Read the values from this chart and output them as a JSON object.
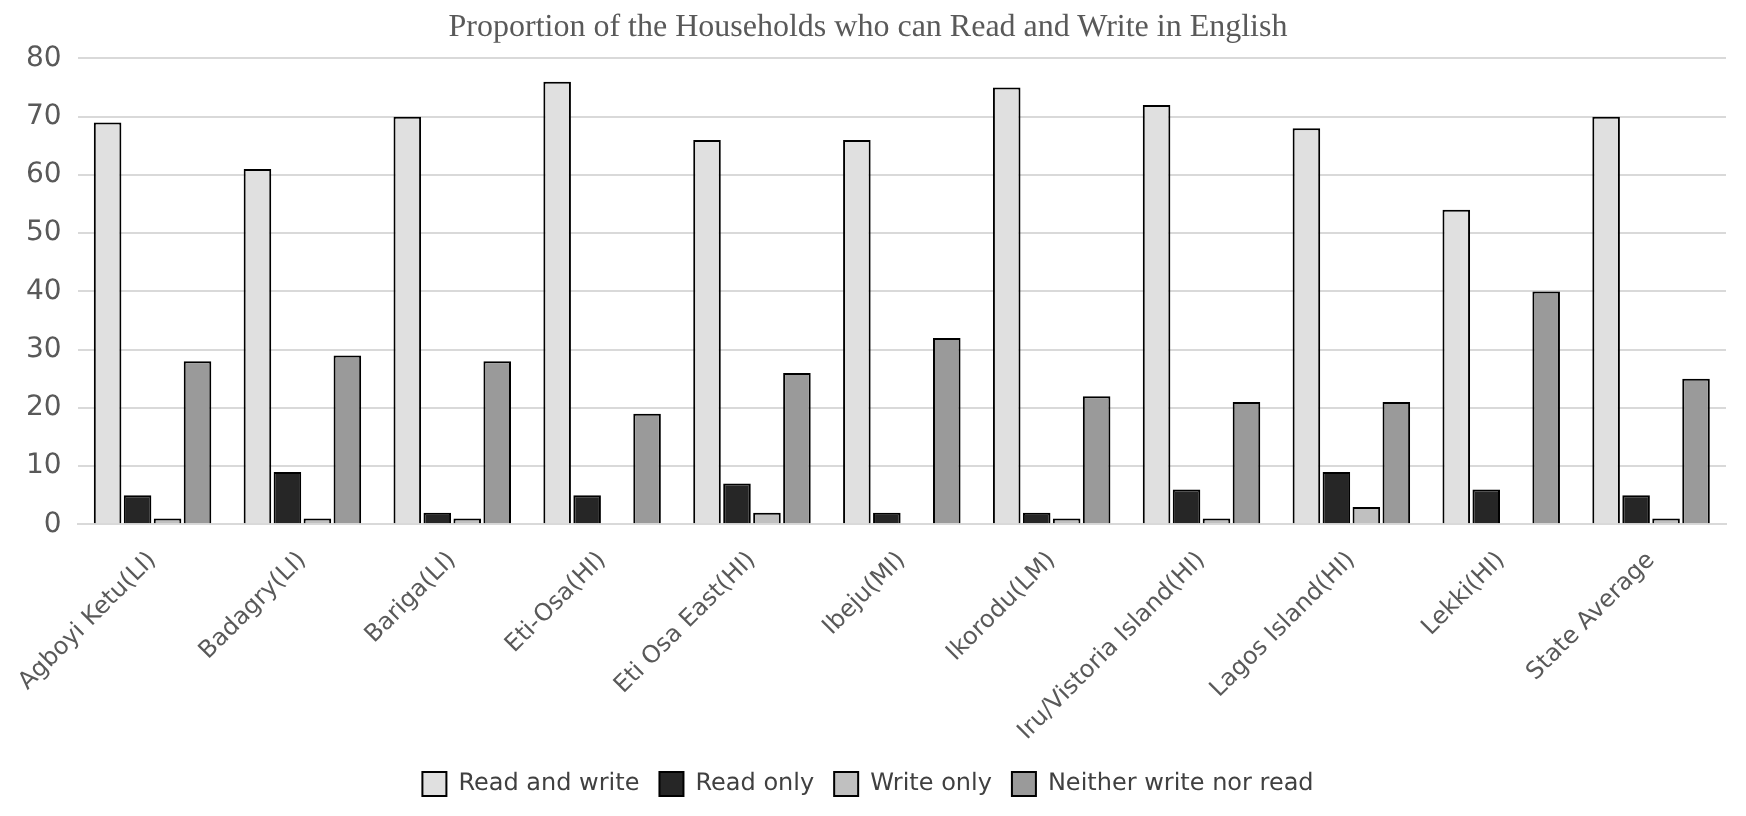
{
  "chart_data": {
    "type": "bar",
    "title": "Proportion of the Households who can Read and Write in English",
    "categories": [
      "Agboyi Ketu(LI)",
      "Badagry(LI)",
      "Bariga(LI)",
      "Eti-Osa(HI)",
      "Eti Osa East(HI)",
      "Ibeju(MI)",
      "Ikorodu(LM)",
      "Iru/Vistoria Island(HI)",
      "Lagos Island(HI)",
      "Lekki(HI)",
      "State Average"
    ],
    "series": [
      {
        "name": "Read and write",
        "color": "#e0e0e0",
        "values": [
          69,
          61,
          70,
          76,
          66,
          66,
          75,
          72,
          68,
          54,
          70
        ]
      },
      {
        "name": "Read only",
        "color": "#262626",
        "values": [
          5,
          9,
          2,
          5,
          7,
          2,
          2,
          6,
          9,
          6,
          5
        ]
      },
      {
        "name": "Write only",
        "color": "#c0c0c0",
        "values": [
          1,
          1,
          1,
          0,
          2,
          0,
          1,
          1,
          3,
          0,
          1
        ]
      },
      {
        "name": "Neither write nor read",
        "color": "#9a9a9a",
        "values": [
          28,
          29,
          28,
          19,
          26,
          32,
          22,
          21,
          21,
          40,
          25
        ]
      }
    ],
    "ylim": [
      0,
      80
    ],
    "yticks": [
      0,
      10,
      20,
      30,
      40,
      50,
      60,
      70,
      80
    ],
    "grid": "y",
    "legend": "bottom"
  }
}
